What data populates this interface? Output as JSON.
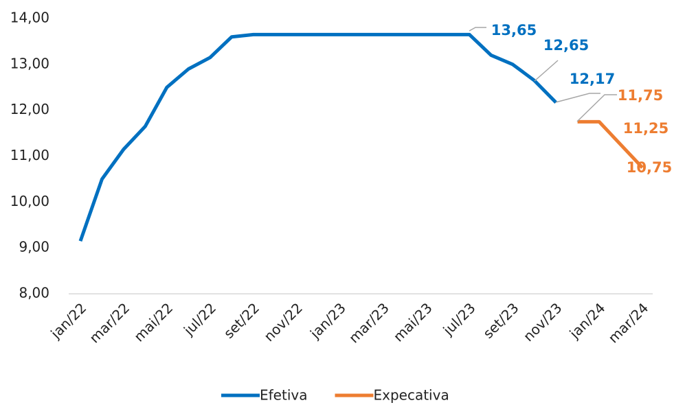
{
  "chart_data": {
    "type": "line",
    "categories": [
      "jan/22",
      null,
      "mar/22",
      null,
      "mai/22",
      null,
      "jul/22",
      null,
      "set/22",
      null,
      "nov/22",
      null,
      "jan/23",
      null,
      "mar/23",
      null,
      "mai/23",
      null,
      "jul/23",
      null,
      "set/23",
      null,
      "nov/23",
      null,
      "jan/24",
      null,
      "mar/24"
    ],
    "series": [
      {
        "name": "Efetiva",
        "color": "#0070c0",
        "values": [
          9.15,
          10.5,
          11.15,
          11.65,
          12.5,
          12.9,
          13.15,
          13.6,
          13.65,
          13.65,
          13.65,
          13.65,
          13.65,
          13.65,
          13.65,
          13.65,
          13.65,
          13.65,
          13.65,
          13.2,
          13.0,
          12.65,
          12.17,
          null,
          null,
          null,
          null
        ],
        "value_labels": [
          null,
          null,
          null,
          null,
          null,
          null,
          null,
          null,
          null,
          null,
          null,
          null,
          null,
          null,
          null,
          null,
          null,
          null,
          "13,65",
          null,
          null,
          "12,65",
          "12,17",
          null,
          null,
          null,
          null
        ]
      },
      {
        "name": "Expecativa",
        "color": "#ed7d31",
        "values": [
          null,
          null,
          null,
          null,
          null,
          null,
          null,
          null,
          null,
          null,
          null,
          null,
          null,
          null,
          null,
          null,
          null,
          null,
          null,
          null,
          null,
          null,
          null,
          11.75,
          11.75,
          11.25,
          10.75
        ],
        "value_labels": [
          null,
          null,
          null,
          null,
          null,
          null,
          null,
          null,
          null,
          null,
          null,
          null,
          null,
          null,
          null,
          null,
          null,
          null,
          null,
          null,
          null,
          null,
          null,
          "11,75",
          null,
          "11,25",
          "10,75"
        ]
      }
    ],
    "ylim": [
      8,
      14
    ],
    "yticks": [
      {
        "value": 8,
        "label": "8,00"
      },
      {
        "value": 9,
        "label": "9,00"
      },
      {
        "value": 10,
        "label": "10,00"
      },
      {
        "value": 11,
        "label": "11,00"
      },
      {
        "value": 12,
        "label": "12,00"
      },
      {
        "value": 13,
        "label": "13,00"
      },
      {
        "value": 14,
        "label": "14,00"
      }
    ],
    "grid": false,
    "legend": "bottom"
  }
}
